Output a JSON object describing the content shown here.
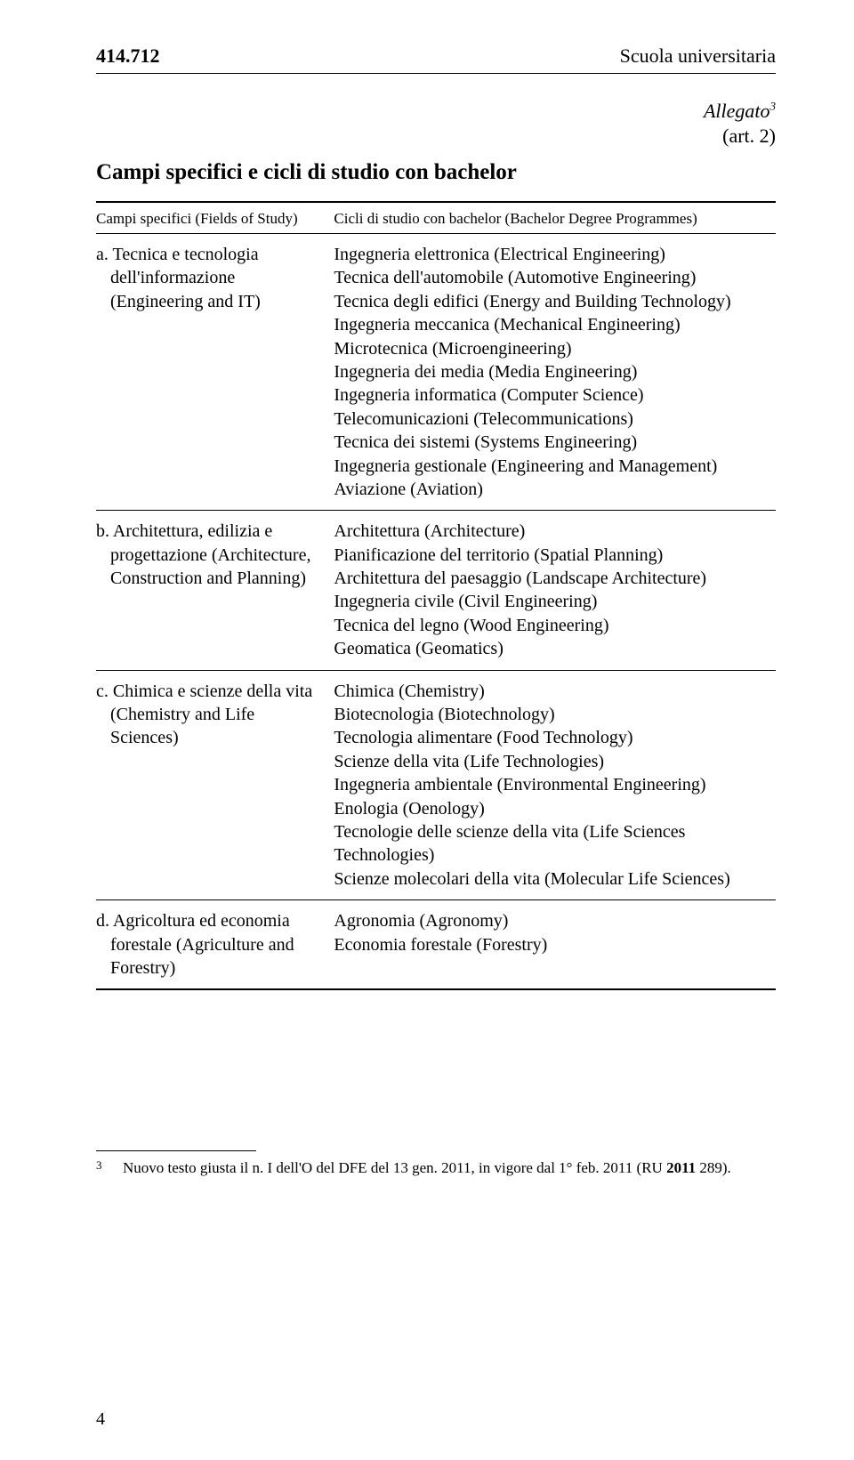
{
  "header": {
    "code": "414.712",
    "area": "Scuola universitaria"
  },
  "allegato": {
    "label": "Allegato",
    "sup": "3",
    "art": "(art. 2)"
  },
  "title": "Campi specifici e cicli di studio con bachelor",
  "table_header": {
    "col1": "Campi specifici (Fields of Study)",
    "col2": "Cicli di studio con bachelor (Bachelor Degree Programmes)"
  },
  "rows": [
    {
      "field": "a. Tecnica e tecnologia dell'informazione (Engineering and IT)",
      "programmes": [
        "Ingegneria elettronica (Electrical Engineering)",
        "Tecnica dell'automobile (Automotive Engineering)",
        "Tecnica degli edifici (Energy and Building Technology)",
        "Ingegneria meccanica (Mechanical Engineering)",
        "Microtecnica (Microengineering)",
        "Ingegneria dei media (Media Engineering)",
        "Ingegneria informatica (Computer Science)",
        "Telecomunicazioni (Telecommunications)",
        "Tecnica dei sistemi (Systems Engineering)",
        "Ingegneria gestionale (Engineering and Management)",
        "Aviazione (Aviation)"
      ]
    },
    {
      "field": "b. Architettura, edilizia e progettazione (Architecture, Construction and Planning)",
      "programmes": [
        "Architettura (Architecture)",
        "Pianificazione del territorio (Spatial Planning)",
        "Architettura del paesaggio (Landscape Architecture)",
        "Ingegneria civile (Civil Engineering)",
        "Tecnica del legno (Wood Engineering)",
        "Geomatica (Geomatics)"
      ]
    },
    {
      "field": "c. Chimica e scienze della vita (Chemistry and Life Sciences)",
      "programmes": [
        "Chimica (Chemistry)",
        "Biotecnologia (Biotechnology)",
        "Tecnologia alimentare (Food Technology)",
        "Scienze della vita (Life Technologies)",
        "Ingegneria ambientale (Environmental Engineering)",
        "Enologia (Oenology)",
        "Tecnologie delle scienze della vita (Life Sciences Technologies)",
        "Scienze molecolari della vita (Molecular Life Sciences)"
      ]
    },
    {
      "field": "d. Agricoltura ed economia forestale (Agriculture and Forestry)",
      "programmes": [
        "Agronomia (Agronomy)",
        "Economia forestale (Forestry)"
      ]
    }
  ],
  "footnote": {
    "num": "3",
    "text": "Nuovo testo giusta il n. I dell'O del DFE del 13 gen. 2011, in vigore dal 1° feb. 2011 (RU 2011 289).",
    "bold_part": "2011"
  },
  "page_number": "4",
  "colors": {
    "text": "#000000",
    "background": "#ffffff",
    "border": "#000000"
  },
  "fonts": {
    "body_family": "Times New Roman",
    "header_code_size_pt": 16,
    "body_size_pt": 15,
    "table_header_size_pt": 13
  }
}
